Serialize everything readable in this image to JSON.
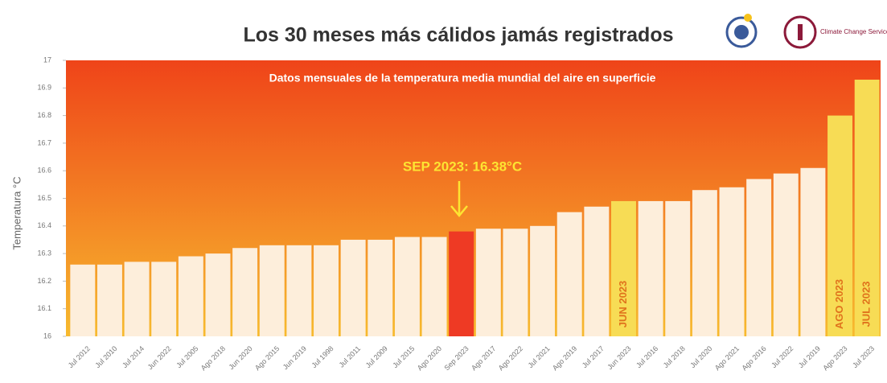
{
  "chart_data": {
    "type": "bar",
    "title": "Los 30 meses más cálidos jamás registrados",
    "subtitle": "Datos mensuales de la temperatura media mundial del aire en superficie",
    "y_label": "Temperatura °C",
    "annotation": "SEP 2023: 16.38°C",
    "logo_text": "Climate Change Service",
    "categories": [
      "Jul 2012",
      "Jul 2010",
      "Jul 2014",
      "Jun 2022",
      "Jul 2005",
      "Ago 2018",
      "Jun 2020",
      "Ago 2015",
      "Jun 2019",
      "Jul 1998",
      "Jul 2011",
      "Jul 2009",
      "Jul 2015",
      "Ago 2020",
      "Sep 2023",
      "Ago 2017",
      "Ago 2022",
      "Jul 2021",
      "Ago 2019",
      "Jul 2017",
      "Jun 2023",
      "Jul 2016",
      "Jul 2018",
      "Jul 2020",
      "Ago 2021",
      "Ago 2016",
      "Jul 2022",
      "Jul 2019",
      "Ago 2023",
      "Jul 2023"
    ],
    "values": [
      16.26,
      16.26,
      16.27,
      16.27,
      16.29,
      16.3,
      16.32,
      16.33,
      16.33,
      16.33,
      16.35,
      16.35,
      16.36,
      16.36,
      16.38,
      16.39,
      16.39,
      16.4,
      16.45,
      16.47,
      16.49,
      16.49,
      16.49,
      16.53,
      16.54,
      16.57,
      16.59,
      16.61,
      16.8,
      16.93
    ],
    "colors": [
      "#fdeedb",
      "#fdeedb",
      "#fdeedb",
      "#fdeedb",
      "#fdeedb",
      "#fdeedb",
      "#fdeedb",
      "#fdeedb",
      "#fdeedb",
      "#fdeedb",
      "#fdeedb",
      "#fdeedb",
      "#fdeedb",
      "#fdeedb",
      "#ee3a24",
      "#fdeedb",
      "#fdeedb",
      "#fdeedb",
      "#fdeedb",
      "#fdeedb",
      "#f7dc55",
      "#fdeedb",
      "#fdeedb",
      "#fdeedb",
      "#fdeedb",
      "#fdeedb",
      "#fdeedb",
      "#fdeedb",
      "#f7dc55",
      "#f7dc55"
    ],
    "inner_labels": [
      null,
      null,
      null,
      null,
      null,
      null,
      null,
      null,
      null,
      null,
      null,
      null,
      null,
      null,
      null,
      null,
      null,
      null,
      null,
      null,
      "JUN 2023",
      null,
      null,
      null,
      null,
      null,
      null,
      null,
      "AGO 2023",
      "JUL 2023"
    ],
    "ylim": [
      16,
      17
    ],
    "yticks": [
      16,
      16.1,
      16.2,
      16.3,
      16.4,
      16.5,
      16.6,
      16.7,
      16.8,
      16.9,
      17
    ],
    "grid": false
  }
}
